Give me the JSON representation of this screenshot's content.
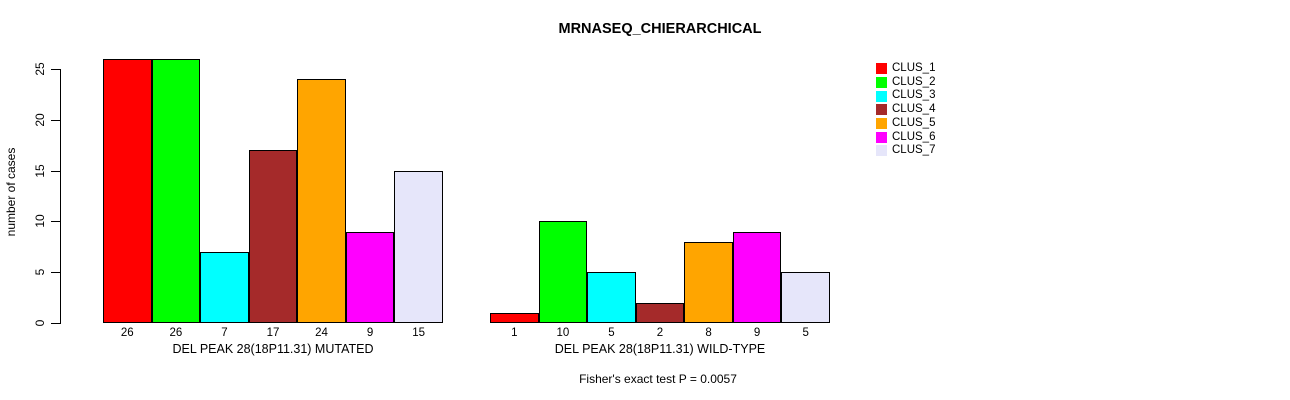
{
  "title": "MRNASEQ_CHIERARCHICAL",
  "ylabel": "number of cases",
  "footnote": "Fisher's exact test P = 0.0057",
  "legend": {
    "items": [
      {
        "label": "CLUS_1",
        "color": "#FF0000"
      },
      {
        "label": "CLUS_2",
        "color": "#00FF00"
      },
      {
        "label": "CLUS_3",
        "color": "#00FFFF"
      },
      {
        "label": "CLUS_4",
        "color": "#A52A2A"
      },
      {
        "label": "CLUS_5",
        "color": "#FFA500"
      },
      {
        "label": "CLUS_6",
        "color": "#FF00FF"
      },
      {
        "label": "CLUS_7",
        "color": "#E6E6FA"
      }
    ]
  },
  "chart_data": {
    "type": "bar",
    "categories": [
      "CLUS_1",
      "CLUS_2",
      "CLUS_3",
      "CLUS_4",
      "CLUS_5",
      "CLUS_6",
      "CLUS_7"
    ],
    "colors": [
      "#FF0000",
      "#00FF00",
      "#00FFFF",
      "#A52A2A",
      "#FFA500",
      "#FF00FF",
      "#E6E6FA"
    ],
    "groups": [
      {
        "label": "DEL PEAK 28(18P11.31) MUTATED",
        "values": [
          26,
          26,
          7,
          17,
          24,
          9,
          15
        ]
      },
      {
        "label": "DEL PEAK 28(18P11.31) WILD-TYPE",
        "values": [
          1,
          10,
          5,
          2,
          8,
          9,
          5
        ]
      }
    ],
    "title": "MRNASEQ_CHIERARCHICAL",
    "xlabel": "",
    "ylabel": "number of cases",
    "yticks": [
      0,
      5,
      10,
      15,
      20,
      25
    ],
    "ylim": [
      0,
      26
    ],
    "bar_value_labels": true,
    "grid": false,
    "legend_position": "right"
  }
}
